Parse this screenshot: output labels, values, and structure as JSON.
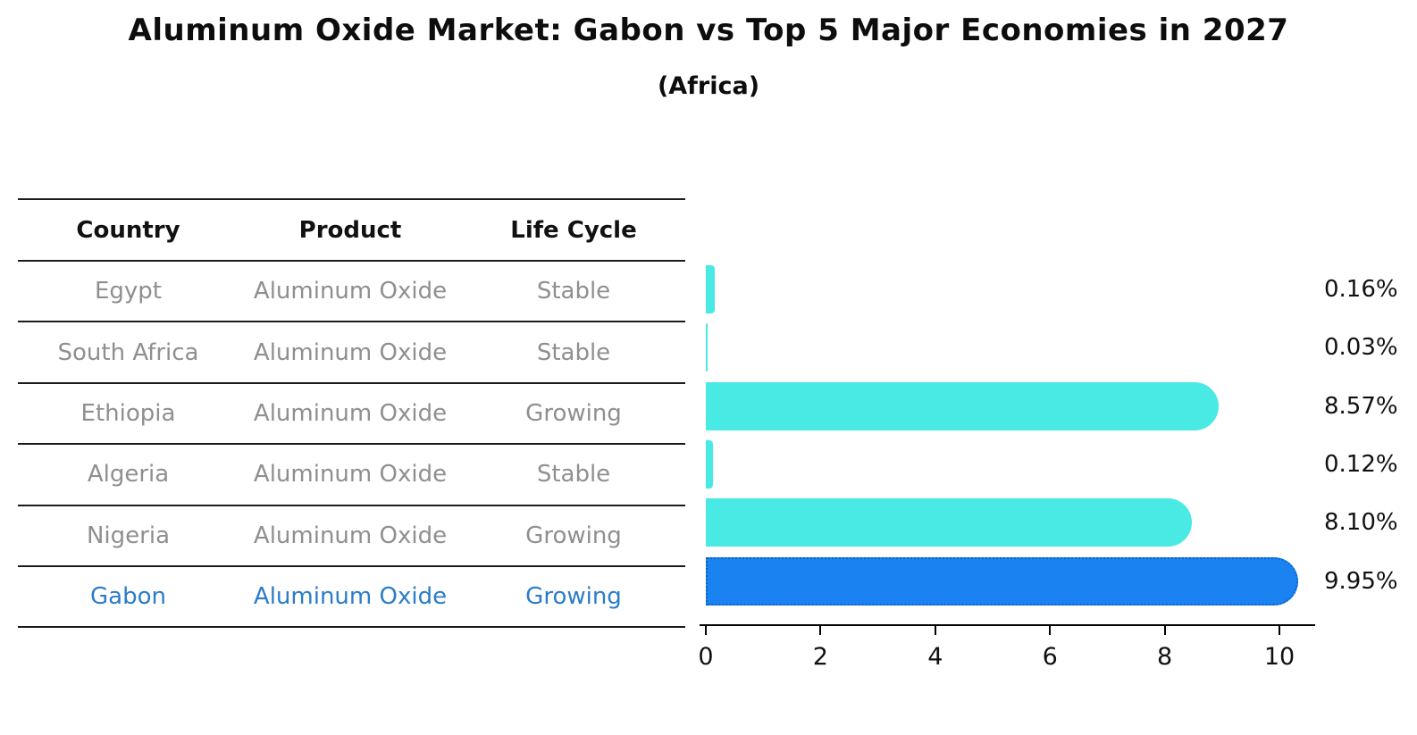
{
  "title": "Aluminum Oxide Market: Gabon vs Top 5 Major Economies in 2027",
  "subtitle": "(Africa)",
  "table": {
    "headers": [
      "Country",
      "Product",
      "Life Cycle"
    ],
    "rows": [
      {
        "country": "Egypt",
        "product": "Aluminum Oxide",
        "life_cycle": "Stable",
        "highlight": false
      },
      {
        "country": "South Africa",
        "product": "Aluminum Oxide",
        "life_cycle": "Stable",
        "highlight": false
      },
      {
        "country": "Ethiopia",
        "product": "Aluminum Oxide",
        "life_cycle": "Growing",
        "highlight": false
      },
      {
        "country": "Algeria",
        "product": "Aluminum Oxide",
        "life_cycle": "Stable",
        "highlight": false
      },
      {
        "country": "Nigeria",
        "product": "Aluminum Oxide",
        "life_cycle": "Growing",
        "highlight": false
      },
      {
        "country": "Gabon",
        "product": "Aluminum Oxide",
        "life_cycle": "Growing",
        "highlight": true
      }
    ]
  },
  "chart_data": {
    "type": "bar",
    "orientation": "horizontal",
    "title": "Aluminum Oxide Market: Gabon vs Top 5 Major Economies in 2027",
    "subtitle": "(Africa)",
    "categories": [
      "Egypt",
      "South Africa",
      "Ethiopia",
      "Algeria",
      "Nigeria",
      "Gabon"
    ],
    "values": [
      0.16,
      0.03,
      8.57,
      0.12,
      8.1,
      9.95
    ],
    "value_labels": [
      "0.16%",
      "0.03%",
      "8.57%",
      "0.12%",
      "8.10%",
      "9.95%"
    ],
    "highlight_index": 5,
    "xlabel": "",
    "ylabel": "",
    "xlim": [
      0,
      10.6
    ],
    "xticks": [
      "0",
      "2",
      "4",
      "6",
      "8",
      "10"
    ],
    "grid": false,
    "legend": false,
    "colors": {
      "bar": "#49e9e4",
      "highlight_bar": "#1b83f1",
      "highlight_border": "#0e62c9",
      "row_text": "#8f8f8f",
      "highlight_text": "#2b7cc9",
      "axis": "#000000"
    }
  }
}
